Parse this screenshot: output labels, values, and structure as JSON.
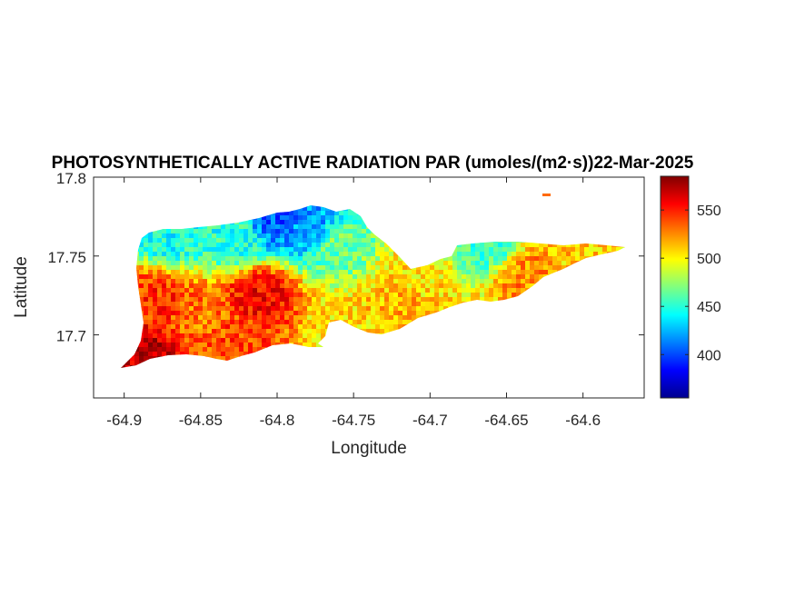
{
  "chart_data": {
    "type": "heatmap",
    "title": "PHOTOSYNTHETICALLY ACTIVE RADIATION PAR (umoles/(m2·s))22-Mar-2025",
    "xlabel": "Longitude",
    "ylabel": "Latitude",
    "xlim": [
      -64.92,
      -64.56
    ],
    "ylim": [
      17.66,
      17.8
    ],
    "xticks": [
      -64.9,
      -64.85,
      -64.8,
      -64.75,
      -64.7,
      -64.65,
      -64.6
    ],
    "xtick_labels": [
      "-64.9",
      "-64.85",
      "-64.8",
      "-64.75",
      "-64.7",
      "-64.65",
      "-64.6"
    ],
    "yticks": [
      17.7,
      17.75,
      17.8
    ],
    "ytick_labels": [
      "17.7",
      "17.75",
      "17.8"
    ],
    "colorbar": {
      "colormap": "jet",
      "range": [
        355,
        585
      ],
      "ticks": [
        400,
        450,
        500,
        550
      ],
      "tick_labels": [
        "400",
        "450",
        "500",
        "550"
      ]
    },
    "region_values": [
      {
        "lon": -64.8,
        "lat": 17.774,
        "value": 405
      },
      {
        "lon": -64.78,
        "lat": 17.768,
        "value": 420
      },
      {
        "lon": -64.83,
        "lat": 17.762,
        "value": 450
      },
      {
        "lon": -64.87,
        "lat": 17.765,
        "value": 445
      },
      {
        "lon": -64.76,
        "lat": 17.757,
        "value": 465
      },
      {
        "lon": -64.66,
        "lat": 17.755,
        "value": 455
      },
      {
        "lon": -64.71,
        "lat": 17.735,
        "value": 505
      },
      {
        "lon": -64.64,
        "lat": 17.74,
        "value": 525
      },
      {
        "lon": -64.6,
        "lat": 17.752,
        "value": 510
      },
      {
        "lon": -64.88,
        "lat": 17.72,
        "value": 545
      },
      {
        "lon": -64.85,
        "lat": 17.71,
        "value": 530
      },
      {
        "lon": -64.81,
        "lat": 17.725,
        "value": 555
      },
      {
        "lon": -64.89,
        "lat": 17.69,
        "value": 570
      },
      {
        "lon": -64.83,
        "lat": 17.695,
        "value": 540
      },
      {
        "lon": -64.76,
        "lat": 17.705,
        "value": 505
      },
      {
        "lon": -64.72,
        "lat": 17.72,
        "value": 515
      }
    ]
  }
}
